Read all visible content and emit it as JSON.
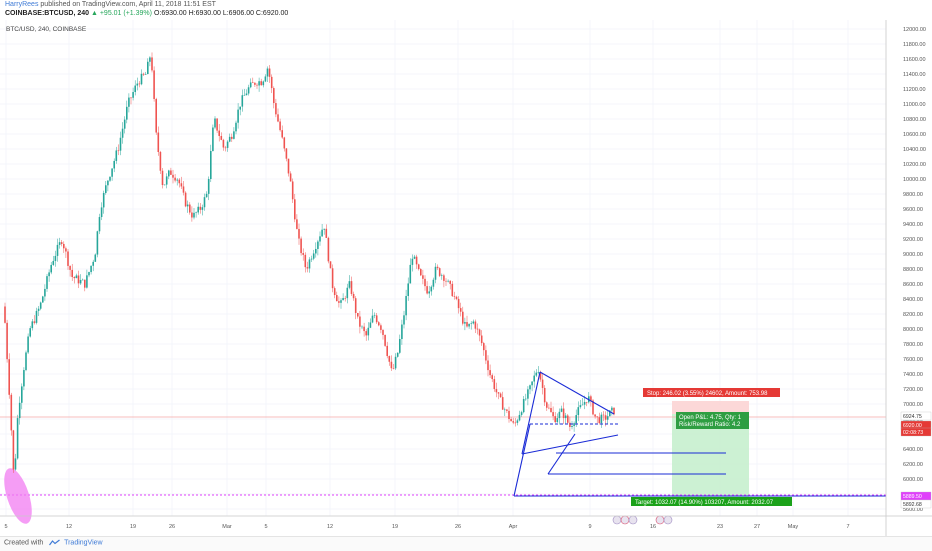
{
  "header": {
    "author": "HarryRees",
    "published": "published on TradingView.com, April 11, 2018 11:51 EST",
    "symbol_line": "COINBASE:BTCUSD, 240",
    "change": "▲ +95.01 (+1.39%)",
    "ohlc": "O:6930.00 H:6930.00 L:6906.00 C:6920.00"
  },
  "chart": {
    "pane_label": "BTC/USD, 240, COINBASE",
    "price_ticks": [
      "12000.00",
      "11800.00",
      "11600.00",
      "11400.00",
      "11200.00",
      "11000.00",
      "10800.00",
      "10600.00",
      "10400.00",
      "10200.00",
      "10000.00",
      "9800.00",
      "9600.00",
      "9400.00",
      "9200.00",
      "9000.00",
      "8800.00",
      "8600.00",
      "8400.00",
      "8200.00",
      "8000.00",
      "7800.00",
      "7600.00",
      "7400.00",
      "7200.00",
      "7000.00",
      "6800.00",
      "6600.00",
      "6400.00",
      "6200.00",
      "6000.00",
      "5800.00",
      "5600.00"
    ],
    "date_ticks": [
      "5",
      "12",
      "19",
      "26",
      "Mar",
      "5",
      "12",
      "19",
      "26",
      "Apr",
      "9",
      "16",
      "23",
      "27",
      "May",
      "7"
    ],
    "price_badges": [
      {
        "text": "7170.77",
        "color": "#e53935"
      },
      {
        "text": "6924.75",
        "color": "#ffffff"
      },
      {
        "text": "6920.00",
        "color": "#e53935"
      },
      {
        "text": "02:08:73",
        "color": "#e53935"
      },
      {
        "text": "5889.50",
        "color": "#e040fb"
      },
      {
        "text": "5892.68",
        "color": "#ffffff"
      }
    ],
    "stop_label": "Stop: 246.02 (3.55%) 24602, Amount: 753.98",
    "open_pl_label": "Open P&L: 4.75, Qty: 1",
    "risk_reward_label": "Risk/Reward Ratio: 4.2",
    "target_label": "Target: 1032.07 (14.90%) 103207, Amount: 2032.07",
    "colors": {
      "up": "#26a69a",
      "down": "#ef5350",
      "pattern_lines": "#1a2bd6",
      "support_line": "#e040fb",
      "stop_zone": "#fcd4d4",
      "target_zone": "#c6efce"
    }
  },
  "footer": {
    "created_with": "Created with",
    "brand": "TradingView"
  }
}
